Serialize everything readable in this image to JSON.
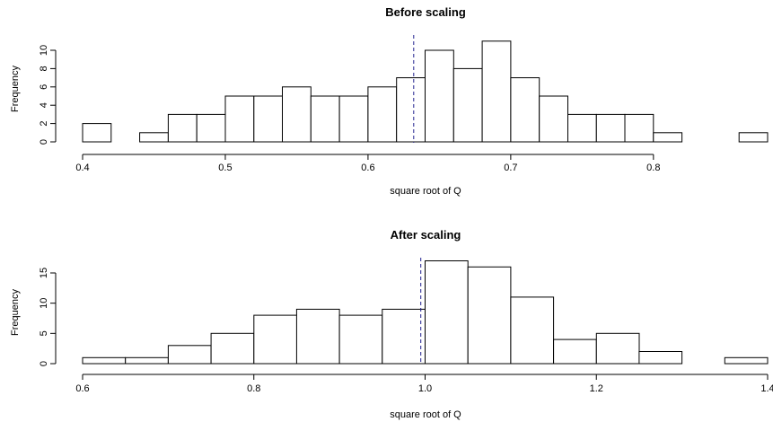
{
  "chart_data": [
    {
      "type": "bar",
      "title": "Before scaling",
      "xlabel": "square root of Q",
      "ylabel": "Frequency",
      "bin_edges": [
        0.4,
        0.42,
        0.44,
        0.46,
        0.48,
        0.5,
        0.52,
        0.54,
        0.56,
        0.58,
        0.6,
        0.62,
        0.64,
        0.66,
        0.68,
        0.7,
        0.72,
        0.74,
        0.76,
        0.78,
        0.8,
        0.82,
        0.84,
        0.86,
        0.88
      ],
      "values": [
        2,
        0,
        1,
        3,
        3,
        5,
        5,
        6,
        5,
        5,
        6,
        7,
        10,
        8,
        11,
        7,
        5,
        3,
        3,
        3,
        1,
        0,
        0,
        1
      ],
      "xlim": [
        0.4,
        0.88
      ],
      "ylim": [
        0,
        11
      ],
      "xticks": [
        0.4,
        0.5,
        0.6,
        0.7,
        0.8
      ],
      "xtick_labels": [
        "0.4",
        "0.5",
        "0.6",
        "0.7",
        "0.8"
      ],
      "yticks": [
        0,
        2,
        4,
        6,
        8,
        10
      ],
      "ytick_labels": [
        "0",
        "2",
        "4",
        "6",
        "8",
        "10"
      ],
      "reference_line": {
        "x": 0.632,
        "color": "#1f1f8f",
        "style": "dashed"
      },
      "grid": false
    },
    {
      "type": "bar",
      "title": "After scaling",
      "xlabel": "square root of Q",
      "ylabel": "Frequency",
      "bin_edges": [
        0.6,
        0.65,
        0.7,
        0.75,
        0.8,
        0.85,
        0.9,
        0.95,
        1.0,
        1.05,
        1.1,
        1.15,
        1.2,
        1.25,
        1.3,
        1.35,
        1.4
      ],
      "values": [
        1,
        1,
        3,
        5,
        8,
        9,
        8,
        9,
        17,
        16,
        11,
        4,
        5,
        2,
        0,
        1
      ],
      "xlim": [
        0.6,
        1.4
      ],
      "ylim": [
        0,
        17
      ],
      "xticks": [
        0.6,
        0.8,
        1.0,
        1.2,
        1.4
      ],
      "xtick_labels": [
        "0.6",
        "0.8",
        "1.0",
        "1.2",
        "1.4"
      ],
      "yticks": [
        0,
        5,
        10,
        15
      ],
      "ytick_labels": [
        "0",
        "5",
        "10",
        "15"
      ],
      "reference_line": {
        "x": 0.995,
        "color": "#1f1f8f",
        "style": "dashed"
      },
      "grid": false
    }
  ]
}
